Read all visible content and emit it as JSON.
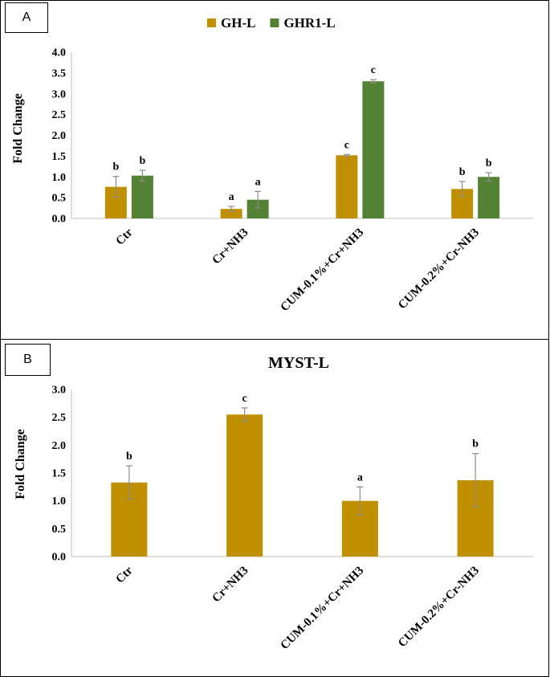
{
  "panels": {
    "a": {
      "label": "A"
    },
    "b": {
      "label": "B"
    }
  },
  "chart_data": [
    {
      "type": "bar",
      "title": "",
      "categories": [
        "Ctr",
        "Cr+NH3",
        "CUM-0.1%+Cr+NH3",
        "CUM-0.2%+Cr-NH3"
      ],
      "series": [
        {
          "name": "GH-L",
          "color": "#c09000",
          "values": [
            0.76,
            0.23,
            1.52,
            0.71
          ],
          "errors": [
            0.25,
            0.06,
            0.02,
            0.18
          ],
          "letters": [
            "b",
            "a",
            "c",
            "b"
          ]
        },
        {
          "name": "GHR1-L",
          "color": "#548235",
          "values": [
            1.03,
            0.45,
            3.3,
            1.0
          ],
          "errors": [
            0.13,
            0.2,
            0.04,
            0.1
          ],
          "letters": [
            "b",
            "a",
            "c",
            "b"
          ]
        }
      ],
      "xlabel": "",
      "ylabel": "Fold Change",
      "ylim": [
        0,
        4.0
      ],
      "yticks": [
        "0.0",
        "0.5",
        "1.0",
        "1.5",
        "2.0",
        "2.5",
        "3.0",
        "3.5",
        "4.0"
      ],
      "legend": "top-center",
      "grid": false
    },
    {
      "type": "bar",
      "title": "MYST-L",
      "categories": [
        "Ctr",
        "Cr+NH3",
        "CUM-0.1%+Cr+NH3",
        "CUM-0.2%+Cr-NH3"
      ],
      "series": [
        {
          "name": "MYST-L",
          "color": "#c09000",
          "values": [
            1.33,
            2.55,
            1.0,
            1.37
          ],
          "errors": [
            0.3,
            0.12,
            0.25,
            0.48
          ],
          "letters": [
            "b",
            "c",
            "a",
            "b"
          ]
        }
      ],
      "xlabel": "",
      "ylabel": "Fold Change",
      "ylim": [
        0,
        3.0
      ],
      "yticks": [
        "0.0",
        "0.5",
        "1.0",
        "1.5",
        "2.0",
        "2.5",
        "3.0"
      ],
      "legend": "none",
      "grid": false
    }
  ]
}
